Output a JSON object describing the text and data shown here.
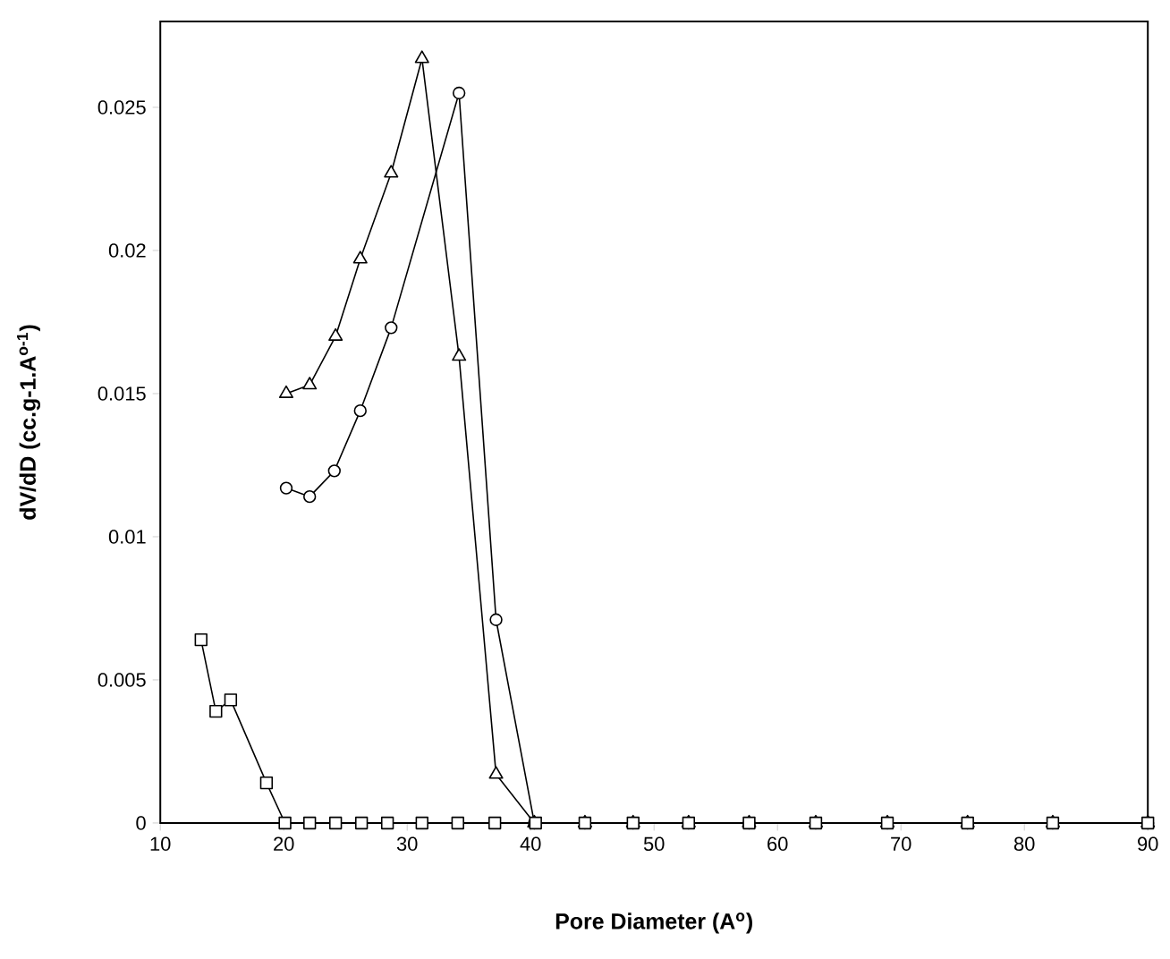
{
  "chart_data": {
    "type": "line",
    "xlabel": "Pore Diameter (A$^{o}$)",
    "ylabel": "dV/dD (cc.g-1.A$^{o-1}$)",
    "xlim": [
      10,
      90
    ],
    "xticks": [
      10,
      20,
      30,
      40,
      50,
      60,
      70,
      80,
      90
    ],
    "ylim": [
      0,
      0.028
    ],
    "yticks": [
      0,
      0.005,
      0.01,
      0.015,
      0.02,
      0.025
    ],
    "series": [
      {
        "color": "#000000",
        "marker": "triangle",
        "x": [
          20.2,
          22.1,
          24.2,
          26.2,
          28.7,
          31.2,
          34.2,
          37.2,
          40.3,
          44.4,
          48.3,
          52.8,
          57.7,
          63.1,
          68.9,
          75.4,
          82.3,
          90.0
        ],
        "values": [
          0.015,
          0.0153,
          0.017,
          0.0197,
          0.0227,
          0.0267,
          0.0163,
          0.0017,
          0,
          0,
          0,
          0,
          0,
          0,
          0,
          0,
          0,
          0
        ]
      },
      {
        "color": "#000000",
        "marker": "circle",
        "x": [
          20.2,
          22.1,
          24.1,
          26.2,
          28.7,
          34.2,
          37.2,
          40.3,
          44.4,
          48.3,
          52.8,
          57.7,
          63.1,
          68.9,
          75.4,
          82.3,
          90.0
        ],
        "values": [
          0.0117,
          0.0114,
          0.0123,
          0.0144,
          0.0173,
          0.0255,
          0.0071,
          0,
          0,
          0,
          0,
          0,
          0,
          0,
          0,
          0,
          0
        ]
      },
      {
        "color": "#000000",
        "marker": "square",
        "x": [
          13.3,
          14.5,
          15.7,
          18.6,
          20.1,
          22.1,
          24.2,
          26.3,
          28.4,
          31.2,
          34.1,
          37.1,
          40.4,
          44.4,
          48.3,
          52.8,
          57.7,
          63.1,
          68.9,
          75.4,
          82.3,
          90.0
        ],
        "values": [
          0.0064,
          0.0039,
          0.0043,
          0.0014,
          0,
          0,
          0,
          0,
          0,
          0,
          0,
          0,
          0,
          0,
          0,
          0,
          0,
          0,
          0,
          0,
          0,
          0
        ]
      }
    ]
  }
}
